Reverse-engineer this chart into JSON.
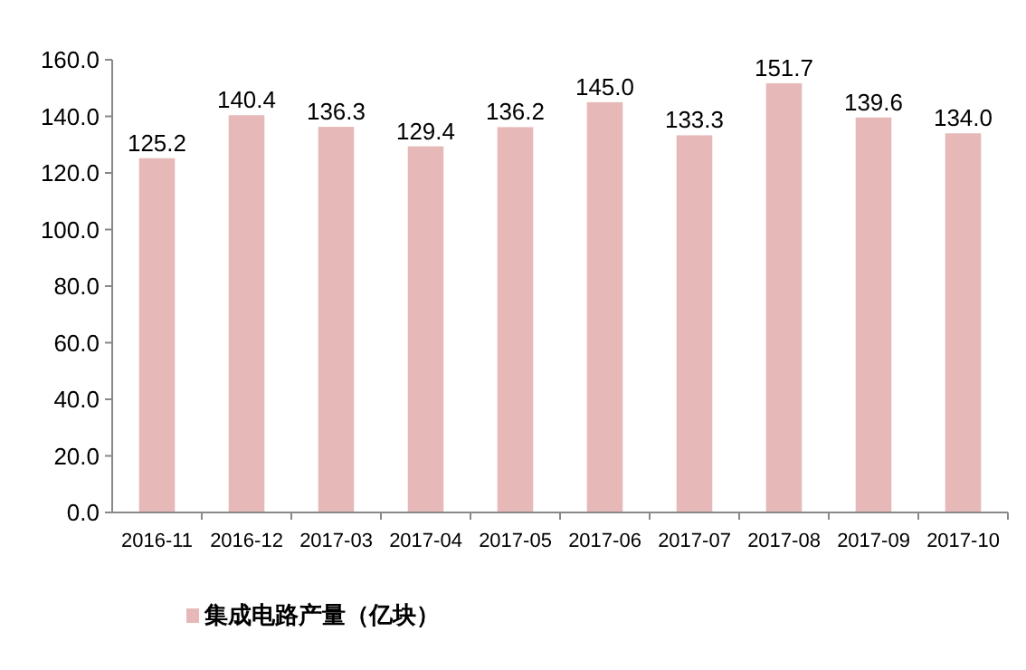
{
  "chart_data": {
    "type": "bar",
    "categories": [
      "2016-11",
      "2016-12",
      "2017-03",
      "2017-04",
      "2017-05",
      "2017-06",
      "2017-07",
      "2017-08",
      "2017-09",
      "2017-10"
    ],
    "series": [
      {
        "name": "集成电路产量（亿块）",
        "color": "#e6b9b8",
        "values": [
          125.2,
          140.4,
          136.3,
          129.4,
          136.2,
          145.0,
          133.3,
          151.7,
          139.6,
          134.0
        ],
        "value_labels": [
          "125.2",
          "140.4",
          "136.3",
          "129.4",
          "136.2",
          "145.0",
          "133.3",
          "151.7",
          "139.6",
          "134.0"
        ]
      }
    ],
    "ylim": [
      0,
      160
    ],
    "yticks": [
      {
        "value": 0,
        "label": "0.0"
      },
      {
        "value": 20,
        "label": "20.0"
      },
      {
        "value": 40,
        "label": "40.0"
      },
      {
        "value": 60,
        "label": "60.0"
      },
      {
        "value": 80,
        "label": "80.0"
      },
      {
        "value": 100,
        "label": "100.0"
      },
      {
        "value": 120,
        "label": "120.0"
      },
      {
        "value": 140,
        "label": "140.0"
      },
      {
        "value": 160,
        "label": "160.0"
      }
    ],
    "grid": false,
    "legend": "bottom"
  }
}
